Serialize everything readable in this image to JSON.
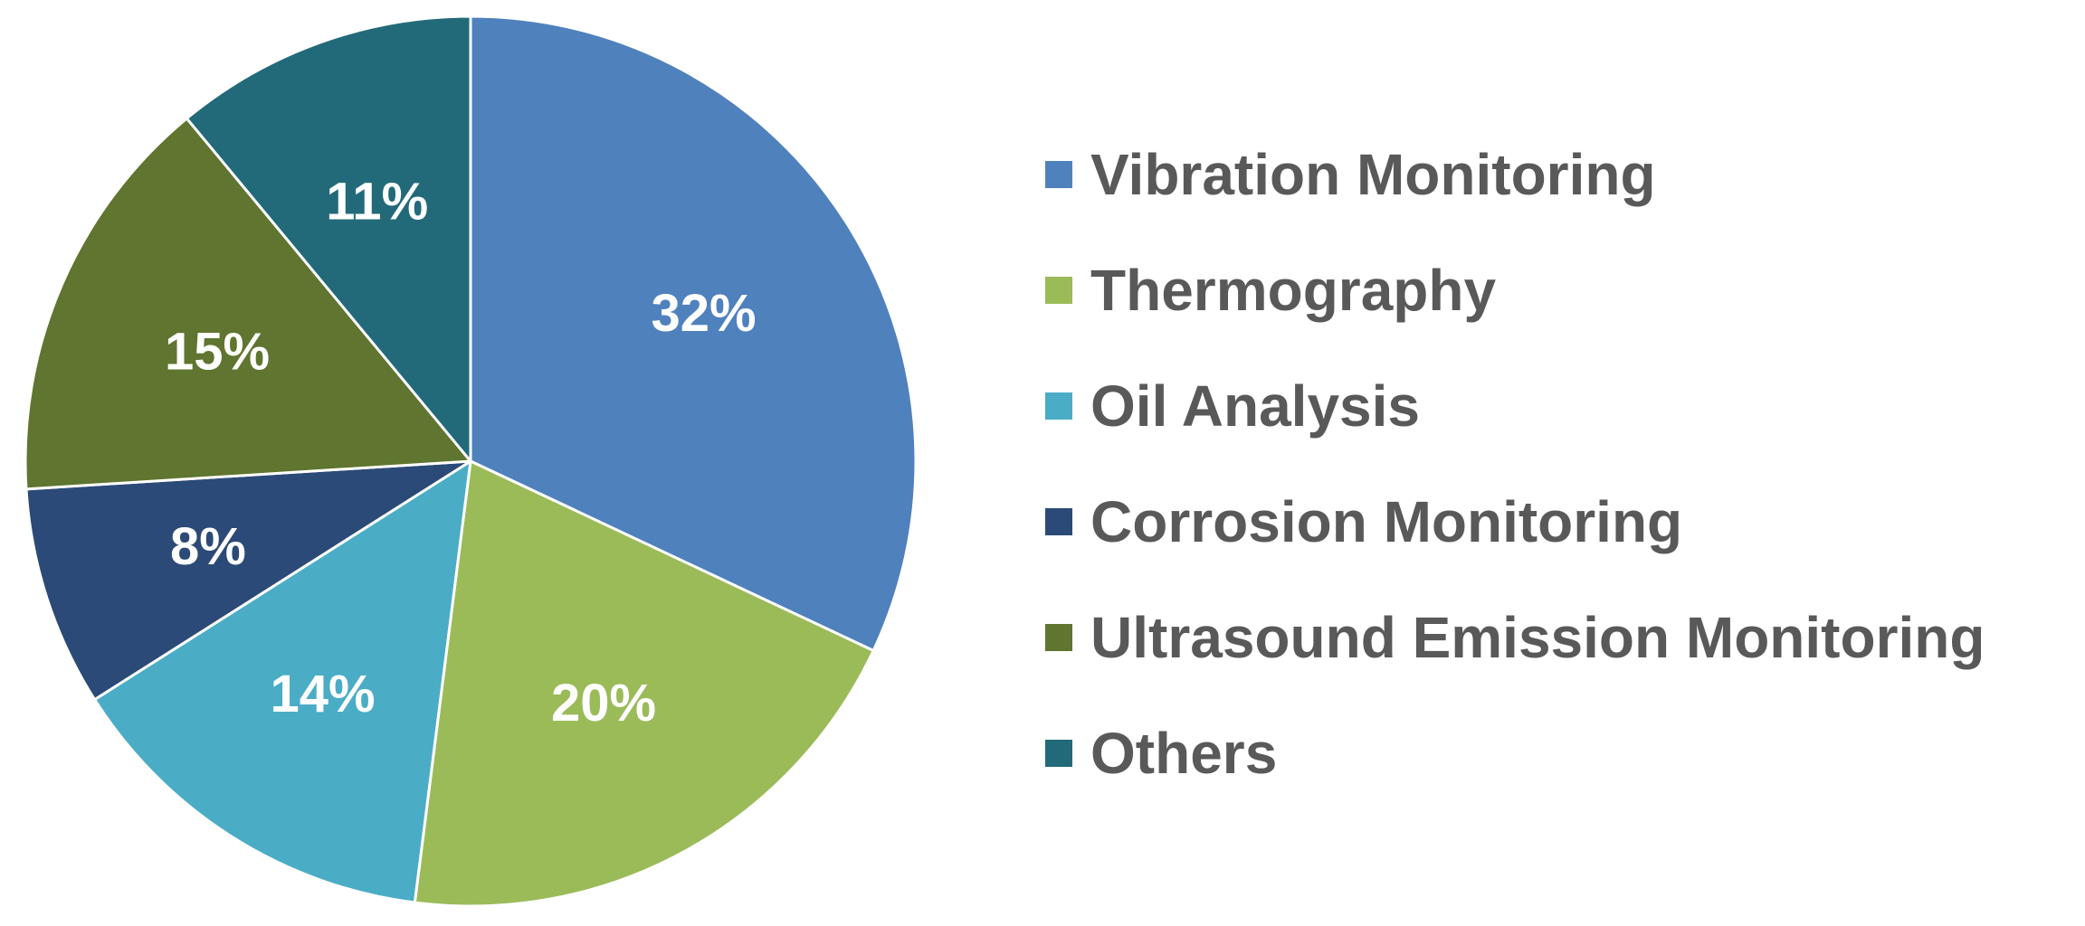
{
  "chart_data": {
    "type": "pie",
    "start_angle_deg": 0,
    "direction": "clockwise",
    "legend_position": "right",
    "slices": [
      {
        "label": "Vibration Monitoring",
        "value": 32,
        "display": "32%",
        "color": "#4F81BD"
      },
      {
        "label": "Thermography",
        "value": 20,
        "display": "20%",
        "color": "#9BBB59"
      },
      {
        "label": "Oil Analysis",
        "value": 14,
        "display": "14%",
        "color": "#4BACC6"
      },
      {
        "label": "Corrosion Monitoring",
        "value": 8,
        "display": "8%",
        "color": "#2C4A77"
      },
      {
        "label": "Ultrasound Emission Monitoring",
        "value": 15,
        "display": "15%",
        "color": "#5F7530"
      },
      {
        "label": "Others",
        "value": 11,
        "display": "11%",
        "color": "#226A7A"
      }
    ]
  }
}
